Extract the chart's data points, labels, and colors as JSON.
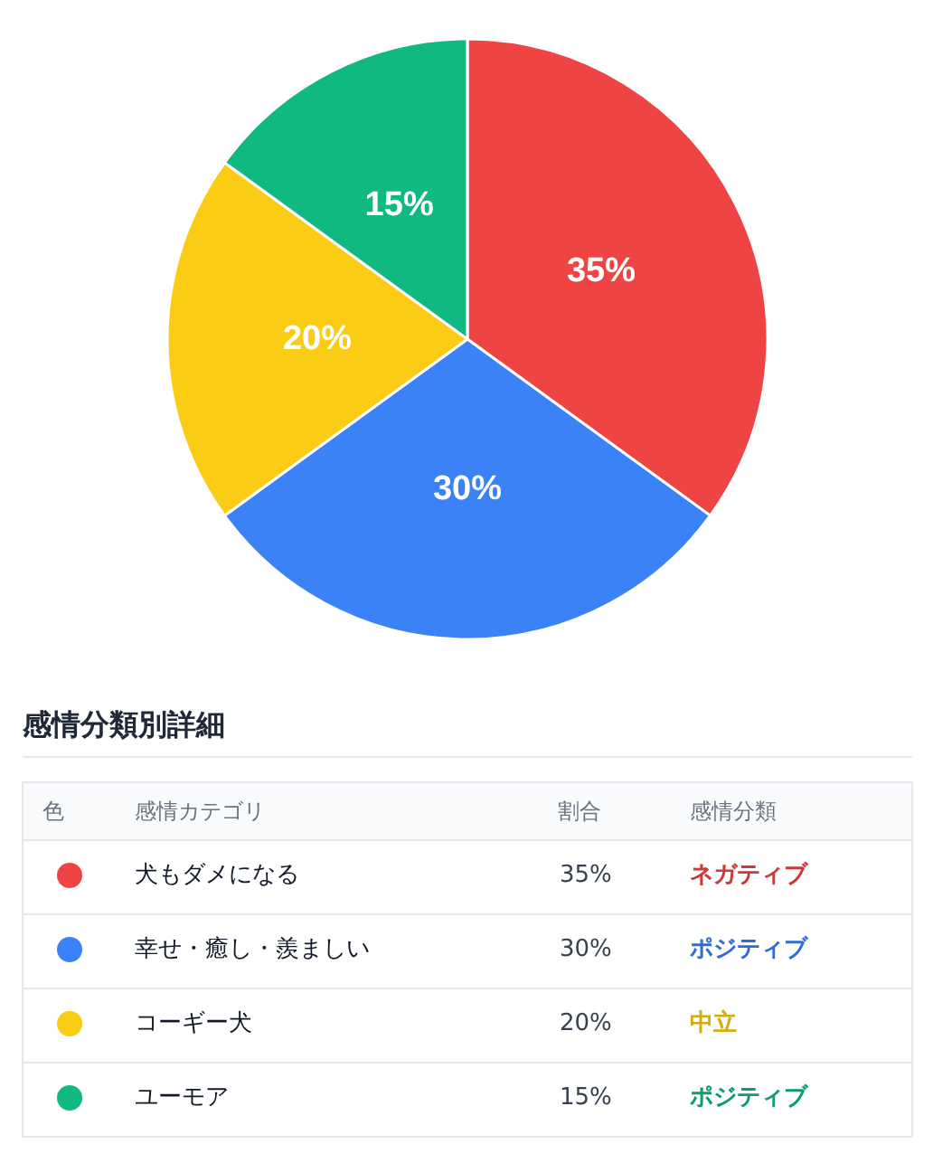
{
  "chart_data": {
    "type": "pie",
    "categories": [
      "犬もダメになる",
      "幸せ・癒し・羨ましい",
      "コーギー犬",
      "ユーモア"
    ],
    "values": [
      35,
      30,
      20,
      15
    ],
    "value_labels": [
      "35%",
      "30%",
      "20%",
      "15%"
    ],
    "colors": [
      "#ef4444",
      "#3b82f6",
      "#facc15",
      "#10b981"
    ],
    "legend": "bottom",
    "legend_title": "感情分類別詳細",
    "annotations": [
      "色",
      "感情カテゴリ",
      "割合",
      "感情分類",
      "ネガティブ",
      "ポジティブ",
      "中立",
      "ポジティブ"
    ]
  }
}
